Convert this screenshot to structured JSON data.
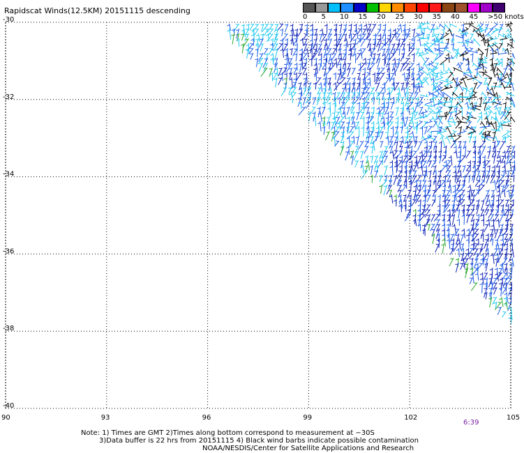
{
  "title": "Rapidscat Winds(12.5KM) 20151115 descending",
  "legend": {
    "colors": [
      "#555555",
      "#999999",
      "#00bfff",
      "#1e90ff",
      "#0000c8",
      "#00c000",
      "#ffd700",
      "#ff8c00",
      "#ff4500",
      "#ff0000",
      "#ff1a1a",
      "#8b4513",
      "#a0522d",
      "#ff00ff",
      "#a000c8",
      "#400070"
    ],
    "labels": [
      "0",
      "5",
      "10",
      "15",
      "20",
      "25",
      "30",
      "35",
      "40",
      "45",
      ">50 knots"
    ]
  },
  "map": {
    "lon_labels": [
      "90",
      "93",
      "96",
      "99",
      "102",
      "105"
    ],
    "lat_labels": [
      "-30",
      "-32",
      "-34",
      "-36",
      "-38",
      "-40"
    ]
  },
  "timestamp": "6:39",
  "notes": {
    "line1": "Note: 1) Times are GMT 2)Times along bottom correspond to measurement at −30S",
    "line2": "3)Data buffer is 22 hrs from 20151115 4) Black wind barbs indicate possible contamination",
    "line3": "NOAA/NESDIS/Center for Satellite Applications and Research"
  },
  "wind_colors": {
    "light": "#1ec8f0",
    "medium": "#1a5ae6",
    "dark": "#0a1eb4",
    "green": "#2aa62a",
    "black": "#000000"
  }
}
